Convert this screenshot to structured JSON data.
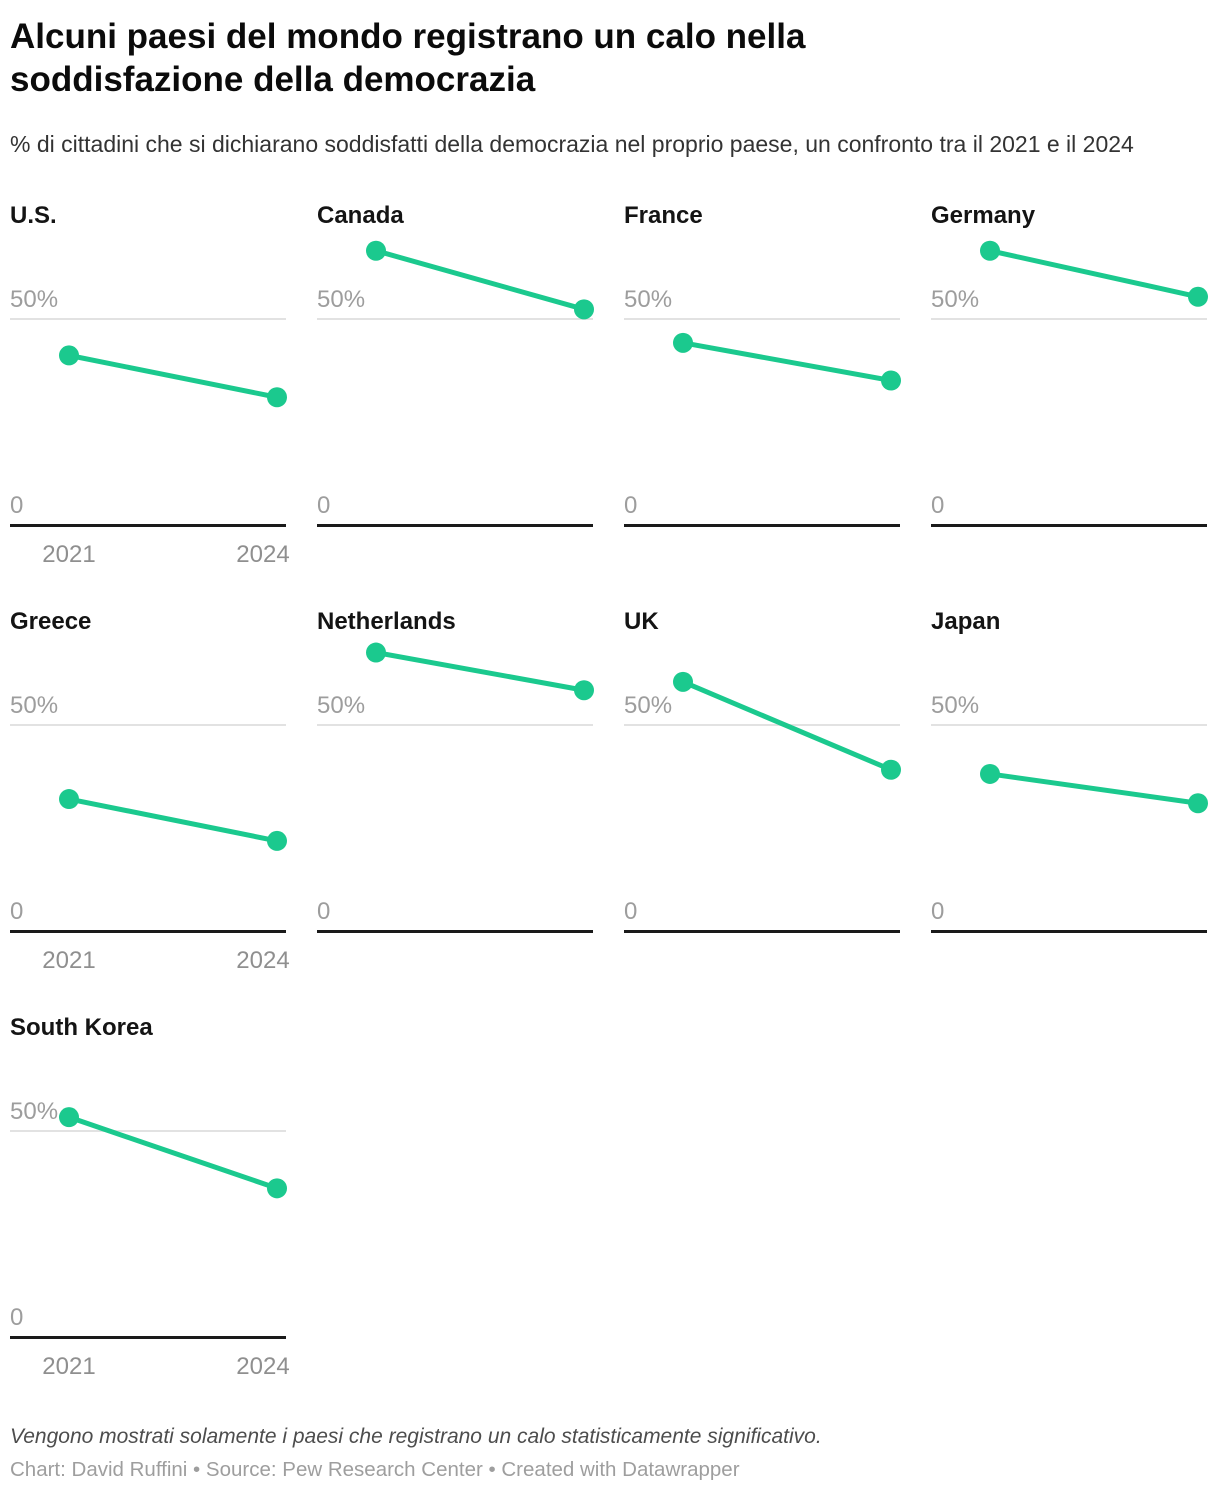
{
  "header": {
    "title": "Alcuni paesi del mondo registrano un calo nella soddisfazione della democrazia",
    "subtitle": "% di cittadini che si dichiarano soddisfatti della democrazia nel proprio paese, un confronto tra il 2021 e il 2024"
  },
  "chart_data": {
    "type": "line",
    "layout": "small-multiples",
    "x": [
      2021,
      2024
    ],
    "x_tick_labels": [
      "2021",
      "2024"
    ],
    "y_gridline_value": 50,
    "y_gridline_label": "50%",
    "y_baseline_label": "0",
    "ylim": [
      0,
      70
    ],
    "unit": "%",
    "grid": "single 50% gridline + zero baseline per panel",
    "accent_color": "#1bc98e",
    "series": [
      {
        "name": "U.S.",
        "values": [
          41,
          31
        ]
      },
      {
        "name": "Canada",
        "values": [
          66,
          52
        ]
      },
      {
        "name": "France",
        "values": [
          44,
          35
        ]
      },
      {
        "name": "Germany",
        "values": [
          66,
          55
        ]
      },
      {
        "name": "Greece",
        "values": [
          32,
          22
        ]
      },
      {
        "name": "Netherlands",
        "values": [
          67,
          58
        ]
      },
      {
        "name": "UK",
        "values": [
          60,
          39
        ]
      },
      {
        "name": "Japan",
        "values": [
          38,
          31
        ]
      },
      {
        "name": "South Korea",
        "values": [
          53,
          36
        ]
      }
    ]
  },
  "footer": {
    "note": "Vengono mostrati solamente i paesi che registrano un calo statisticamente significativo.",
    "credits": "Chart: David Ruffini • Source: Pew Research Center • Created with Datawrapper"
  }
}
